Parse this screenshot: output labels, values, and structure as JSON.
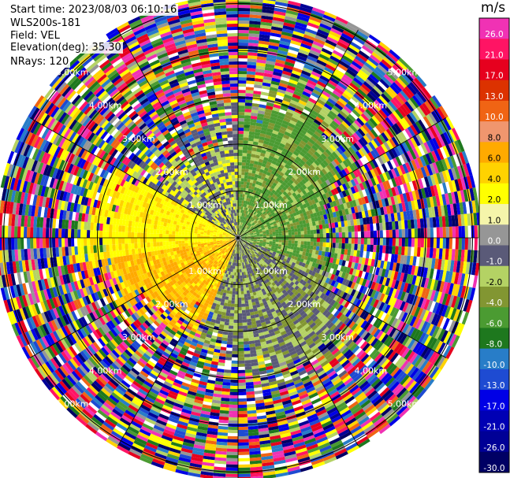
{
  "header": {
    "start_time": "Start time: 2023/08/03 06:10:16",
    "instrument": "WLS200s-181",
    "field": "Field: VEL",
    "elevation": "Elevation(deg): 35.30",
    "nrays": "NRays: 120"
  },
  "range_rings": {
    "labels": [
      "1.00km",
      "2.00km",
      "3.00km",
      "4.00km",
      "5.00km"
    ]
  },
  "colorbar": {
    "unit": "m/s",
    "labels": [
      "26.0",
      "21.0",
      "17.0",
      "13.0",
      "10.0",
      "8.0",
      "6.0",
      "4.0",
      "2.0",
      "1.0",
      "0.0",
      "-1.0",
      "-2.0",
      "-4.0",
      "-6.0",
      "-8.0",
      "-10.0",
      "-13.0",
      "-17.0",
      "-21.0",
      "-26.0",
      "-30.0"
    ],
    "colors": [
      "#f032b4",
      "#ff1464",
      "#e6001e",
      "#dc3200",
      "#f06414",
      "#f0966e",
      "#ffaa00",
      "#ffd200",
      "#ffff00",
      "#f5f5aa",
      "#969696",
      "#5a5a78",
      "#b4d264",
      "#829632",
      "#4b9b32",
      "#1e781e",
      "#287dc8",
      "#1e4bd2",
      "#0000e6",
      "#0000b4",
      "#000096",
      "#000064"
    ]
  }
}
